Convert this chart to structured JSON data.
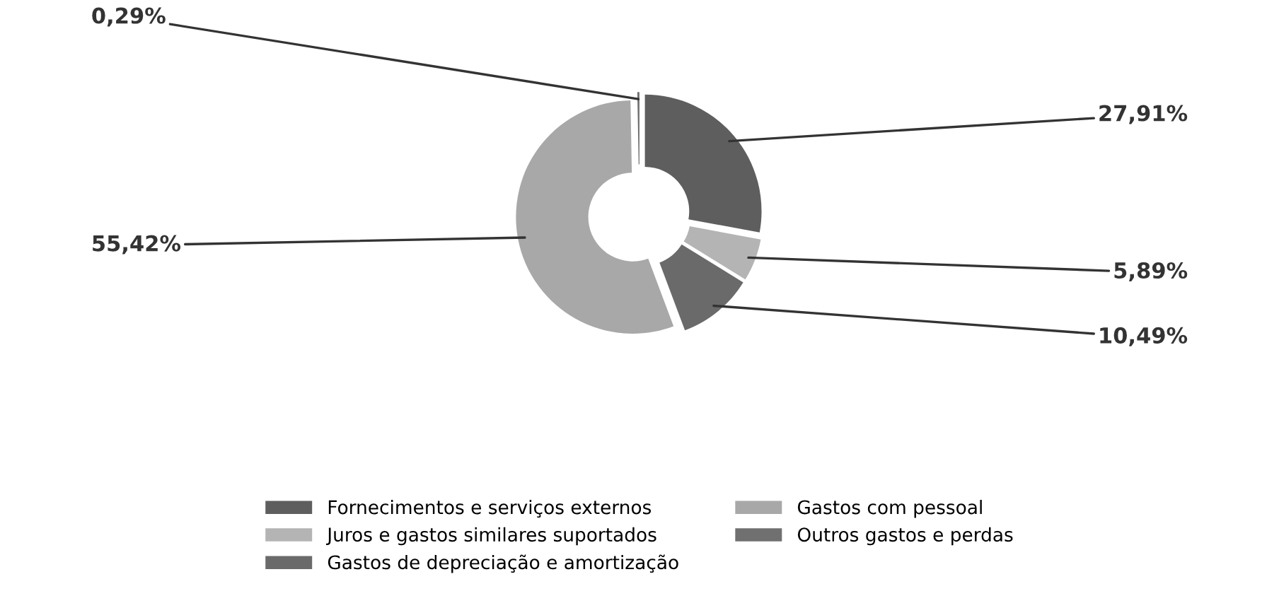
{
  "chart_data": {
    "type": "donut",
    "categories": [
      "Fornecimentos e serviços externos",
      "Juros e gastos similares suportados",
      "Gastos de depreciação e amortização",
      "Gastos com pessoal",
      "Outros gastos e perdas"
    ],
    "values": [
      27.91,
      5.89,
      10.49,
      55.42,
      0.29
    ],
    "colors": [
      "#5e5e5e",
      "#b4b4b4",
      "#6a6a6a",
      "#a8a8a8",
      "#707070"
    ],
    "value_labels": [
      "27,91%",
      "5,89%",
      "10,49%",
      "55,42%",
      "0,29%"
    ],
    "legend": "bottom"
  }
}
